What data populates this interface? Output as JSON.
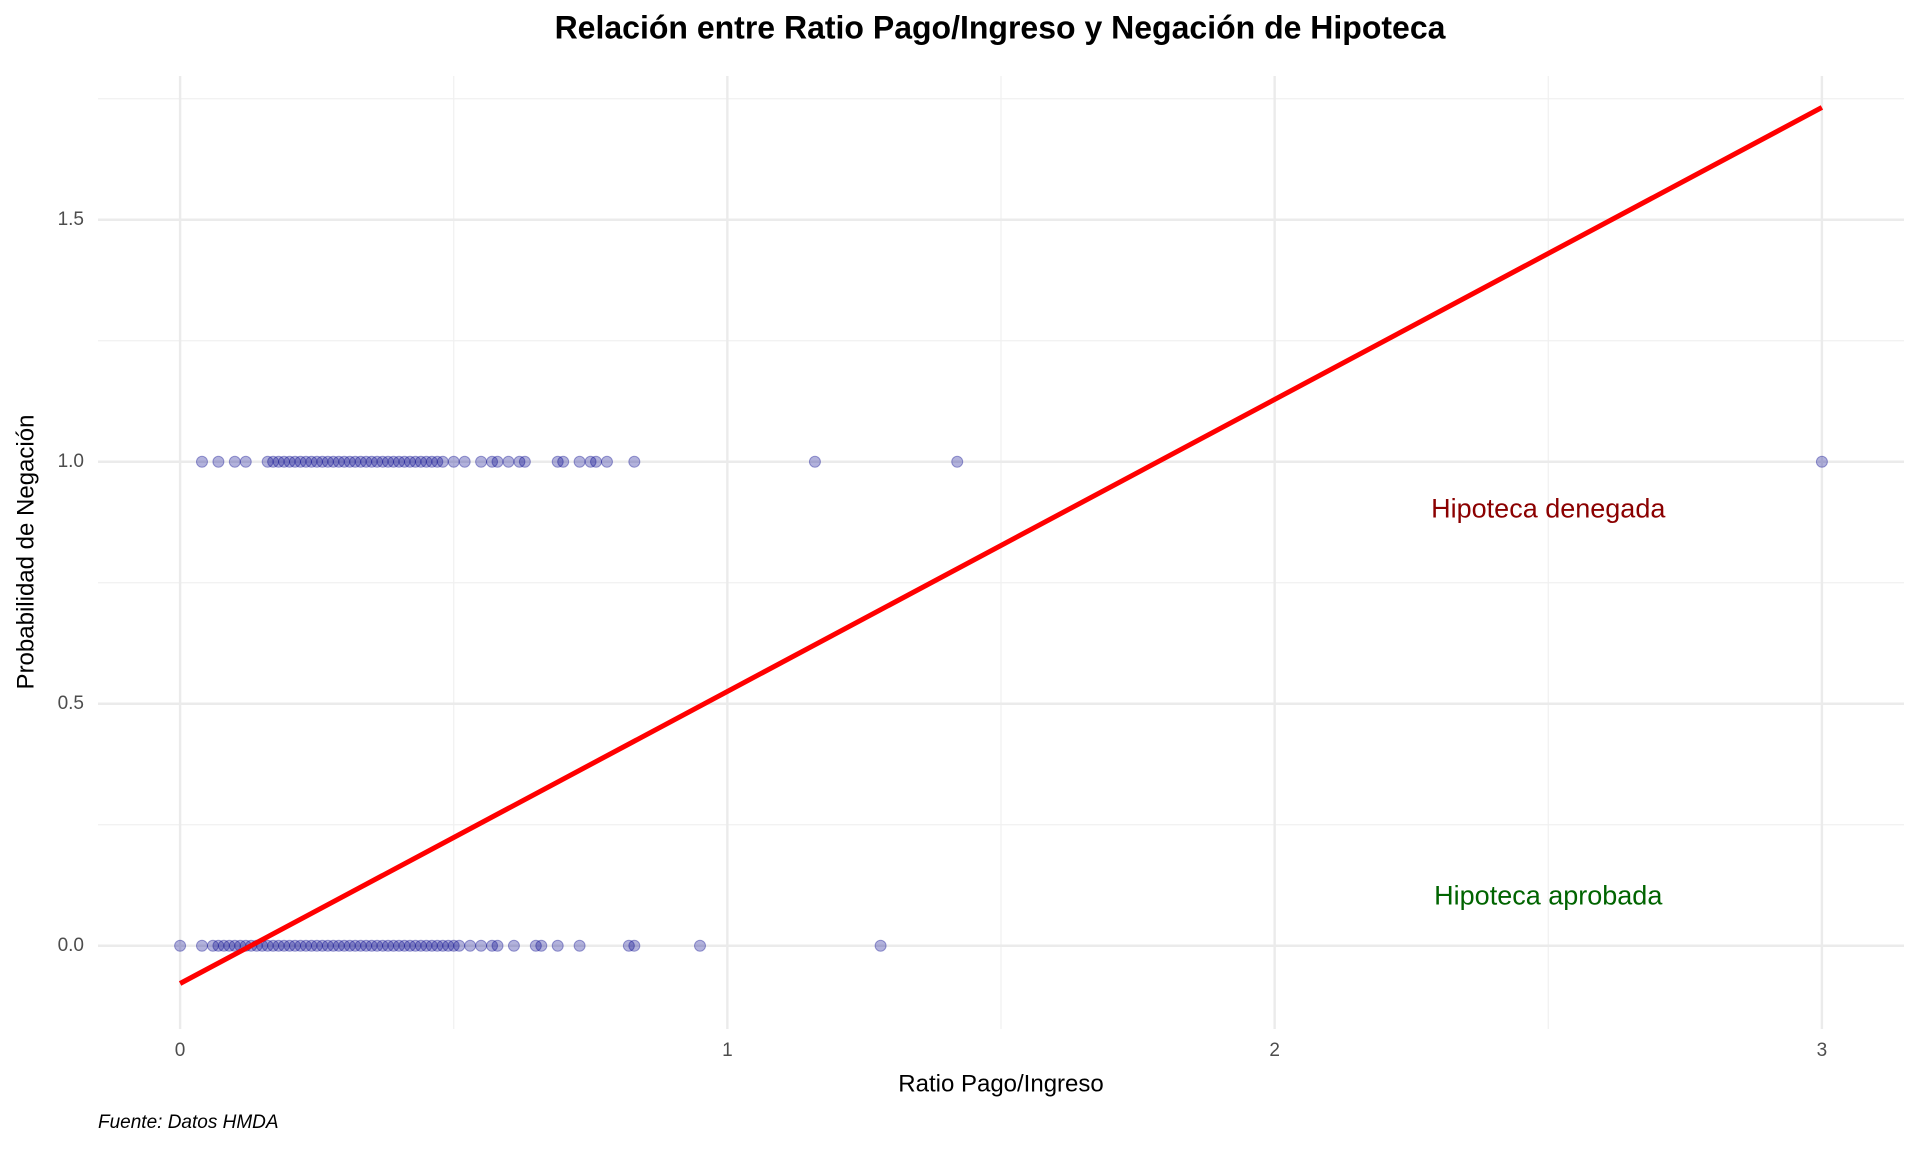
{
  "chart_data": {
    "type": "scatter",
    "title": "Relación entre Ratio Pago/Ingreso y Negación de Hipoteca",
    "x_label": "Ratio Pago/Ingreso",
    "y_label": "Probabilidad de Negación",
    "caption": "Fuente: Datos HMDA",
    "color": "#00008b",
    "x": [
      0,
      0.04,
      0.06,
      0.07,
      0.08,
      0.09,
      0.1,
      0.11,
      0.12,
      0.13,
      0.14,
      0.15,
      0.16,
      0.17,
      0.18,
      0.19,
      0.2,
      0.21,
      0.22,
      0.23,
      0.24,
      0.25,
      0.26,
      0.27,
      0.28,
      0.29,
      0.3,
      0.31,
      0.32,
      0.33,
      0.34,
      0.35,
      0.36,
      0.37,
      0.38,
      0.39,
      0.4,
      0.41,
      0.42,
      0.43,
      0.44,
      0.45,
      0.46,
      0.47,
      0.48,
      0.49,
      0.5,
      0.51,
      0.53,
      0.55,
      0.57,
      0.58,
      0.61,
      0.65,
      0.66,
      0.69,
      0.73,
      0.82,
      0.83,
      0.95,
      1.28,
      0.04,
      0.07,
      0.1,
      0.12,
      0.16,
      0.17,
      0.18,
      0.19,
      0.2,
      0.21,
      0.22,
      0.23,
      0.24,
      0.25,
      0.26,
      0.27,
      0.28,
      0.29,
      0.3,
      0.31,
      0.32,
      0.33,
      0.34,
      0.35,
      0.36,
      0.37,
      0.38,
      0.39,
      0.4,
      0.41,
      0.42,
      0.43,
      0.44,
      0.45,
      0.46,
      0.47,
      0.48,
      0.5,
      0.52,
      0.55,
      0.57,
      0.58,
      0.6,
      0.62,
      0.63,
      0.69,
      0.7,
      0.73,
      0.75,
      0.76,
      0.78,
      0.83,
      1.16,
      1.42,
      3.0
    ],
    "values": [
      0,
      0,
      0,
      0,
      0,
      0,
      0,
      0,
      0,
      0,
      0,
      0,
      0,
      0,
      0,
      0,
      0,
      0,
      0,
      0,
      0,
      0,
      0,
      0,
      0,
      0,
      0,
      0,
      0,
      0,
      0,
      0,
      0,
      0,
      0,
      0,
      0,
      0,
      0,
      0,
      0,
      0,
      0,
      0,
      0,
      0,
      0,
      0,
      0,
      0,
      0,
      0,
      0,
      0,
      0,
      0,
      0,
      0,
      0,
      0,
      0,
      1,
      1,
      1,
      1,
      1,
      1,
      1,
      1,
      1,
      1,
      1,
      1,
      1,
      1,
      1,
      1,
      1,
      1,
      1,
      1,
      1,
      1,
      1,
      1,
      1,
      1,
      1,
      1,
      1,
      1,
      1,
      1,
      1,
      1,
      1,
      1,
      1,
      1,
      1,
      1,
      1,
      1,
      1,
      1,
      1,
      1,
      1,
      1,
      1,
      1,
      1,
      1,
      1,
      1,
      1
    ],
    "fit_line": {
      "x": [
        0,
        3
      ],
      "values": [
        -0.078,
        1.732
      ],
      "color": "#ff0000"
    },
    "annotations": [
      {
        "text": "Hipoteca denegada",
        "x": 2.5,
        "y": 0.9,
        "color": "#8b0000"
      },
      {
        "text": "Hipoteca aprobada",
        "x": 2.5,
        "y": 0.1,
        "color": "#006400"
      }
    ],
    "xlim": [
      -0.15,
      3.15
    ],
    "ylim": [
      -0.172,
      1.797
    ],
    "xticks": [
      0,
      1,
      2,
      3
    ],
    "yticks": [
      {
        "value": 0,
        "label": "0.0"
      },
      0.5,
      {
        "value": 1,
        "label": "1.0"
      },
      1.5
    ],
    "x_minor_grid": [
      0.5,
      1.5,
      2.5
    ],
    "y_minor_grid": [
      0.25,
      0.75,
      1.25,
      1.75
    ],
    "grid": true
  }
}
